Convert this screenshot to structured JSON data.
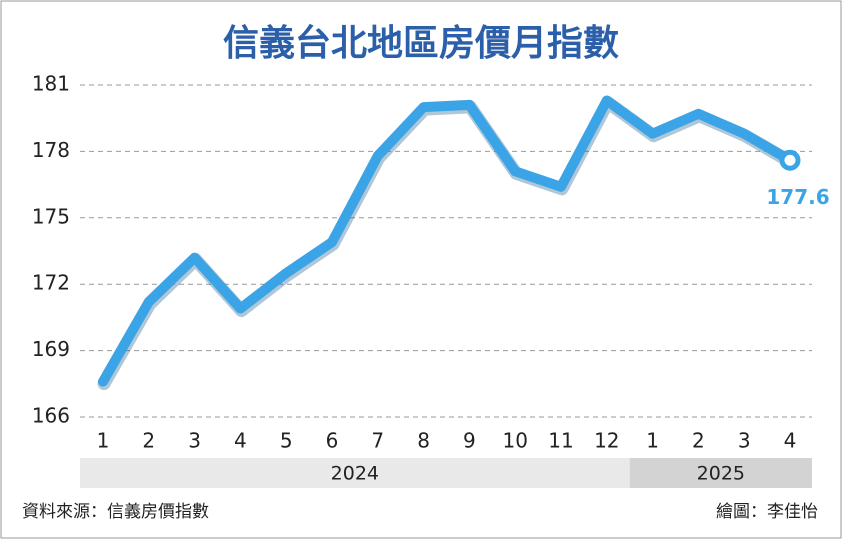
{
  "chart_data": {
    "type": "line",
    "title": "信義台北地區房價月指數",
    "categories": [
      "1",
      "2",
      "3",
      "4",
      "5",
      "6",
      "7",
      "8",
      "9",
      "10",
      "11",
      "12",
      "1",
      "2",
      "3",
      "4"
    ],
    "years": [
      "2024",
      "2024",
      "2024",
      "2024",
      "2024",
      "2024",
      "2024",
      "2024",
      "2024",
      "2024",
      "2024",
      "2024",
      "2025",
      "2025",
      "2025",
      "2025"
    ],
    "series": [
      {
        "name": "信義台北地區房價月指數",
        "color": "#3ba4e6",
        "values": [
          167.6,
          171.2,
          173.2,
          170.9,
          172.5,
          173.9,
          177.8,
          180.0,
          180.1,
          177.1,
          176.4,
          180.3,
          178.8,
          179.7,
          178.8,
          177.6
        ],
        "value_labels": [
          null,
          null,
          null,
          null,
          null,
          null,
          null,
          null,
          null,
          null,
          null,
          null,
          null,
          null,
          null,
          "177.6"
        ]
      }
    ],
    "ylim": [
      166,
      181
    ],
    "yticks": [
      166,
      169,
      172,
      175,
      178,
      181
    ],
    "grid": true,
    "source": "資料來源：信義房價指數",
    "credit": "繪圖：李佳怡"
  }
}
